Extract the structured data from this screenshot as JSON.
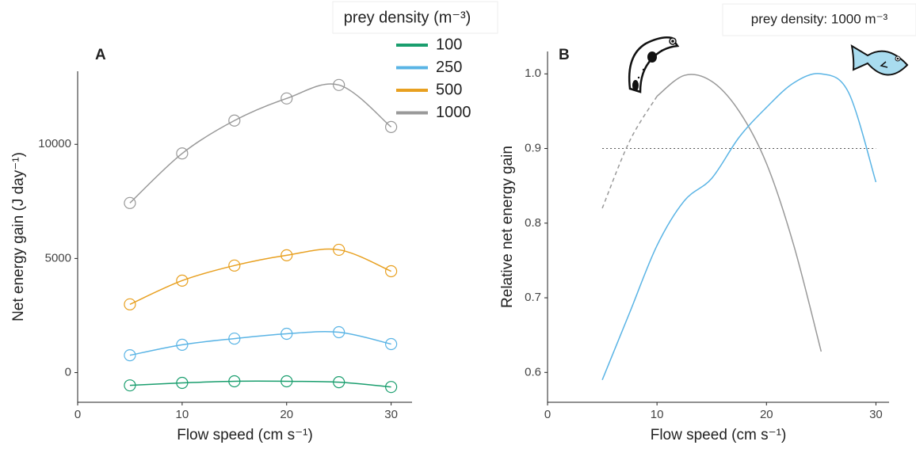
{
  "chart_data": [
    {
      "type": "line",
      "panel": "A",
      "x_label": "Flow speed (cm s⁻¹)",
      "y_label": "Net energy gain (J day⁻¹)",
      "legend_title": "prey density (m⁻³)",
      "markers": true,
      "x": [
        5,
        10,
        15,
        20,
        25,
        30
      ],
      "series": [
        {
          "name": "100",
          "color": "#1a9e6e",
          "values": [
            -560,
            -450,
            -380,
            -380,
            -420,
            -630
          ]
        },
        {
          "name": "250",
          "color": "#5ab4e5",
          "values": [
            760,
            1220,
            1490,
            1700,
            1770,
            1250
          ]
        },
        {
          "name": "500",
          "color": "#e8a020",
          "values": [
            2990,
            4030,
            4690,
            5140,
            5380,
            4440
          ]
        },
        {
          "name": "1000",
          "color": "#999999",
          "values": [
            7430,
            9600,
            11040,
            12010,
            12600,
            10760
          ]
        }
      ],
      "xlim": [
        0,
        32
      ],
      "ylim": [
        -1300,
        13200
      ],
      "xticks": [
        0,
        10,
        20,
        30
      ],
      "yticks": [
        0,
        5000,
        10000
      ]
    },
    {
      "type": "line",
      "panel": "B",
      "x_label": "Flow speed (cm s⁻¹)",
      "y_label": "Relative net energy gain",
      "annotation": "prey density: 1000 m⁻³",
      "series": [
        {
          "color": "#999999",
          "linestyle": "dashed",
          "x": [
            5,
            7.5,
            10
          ],
          "values": [
            0.82,
            0.91,
            0.97
          ]
        },
        {
          "color": "#999999",
          "linestyle": "solid",
          "x": [
            10,
            12.5,
            15,
            17.5,
            20,
            22.5,
            25
          ],
          "values": [
            0.97,
            0.998,
            0.99,
            0.95,
            0.88,
            0.77,
            0.628
          ]
        },
        {
          "color": "#5ab4e5",
          "linestyle": "solid",
          "x": [
            5,
            7.5,
            10,
            12.5,
            15,
            17.5,
            20,
            22.5,
            25,
            27.5,
            30
          ],
          "values": [
            0.59,
            0.68,
            0.77,
            0.83,
            0.86,
            0.915,
            0.955,
            0.988,
            1.0,
            0.975,
            0.855
          ]
        }
      ],
      "hline": {
        "y": 0.9,
        "x": [
          5,
          30
        ],
        "color": "#555555",
        "linestyle": "dotted"
      },
      "xlim": [
        0,
        31.2
      ],
      "ylim": [
        0.56,
        1.03
      ],
      "xticks": [
        0,
        10,
        20,
        30
      ],
      "yticks": [
        0.6,
        0.7,
        0.8,
        0.9,
        {
          "value": 1,
          "label": "1.0"
        }
      ]
    }
  ]
}
